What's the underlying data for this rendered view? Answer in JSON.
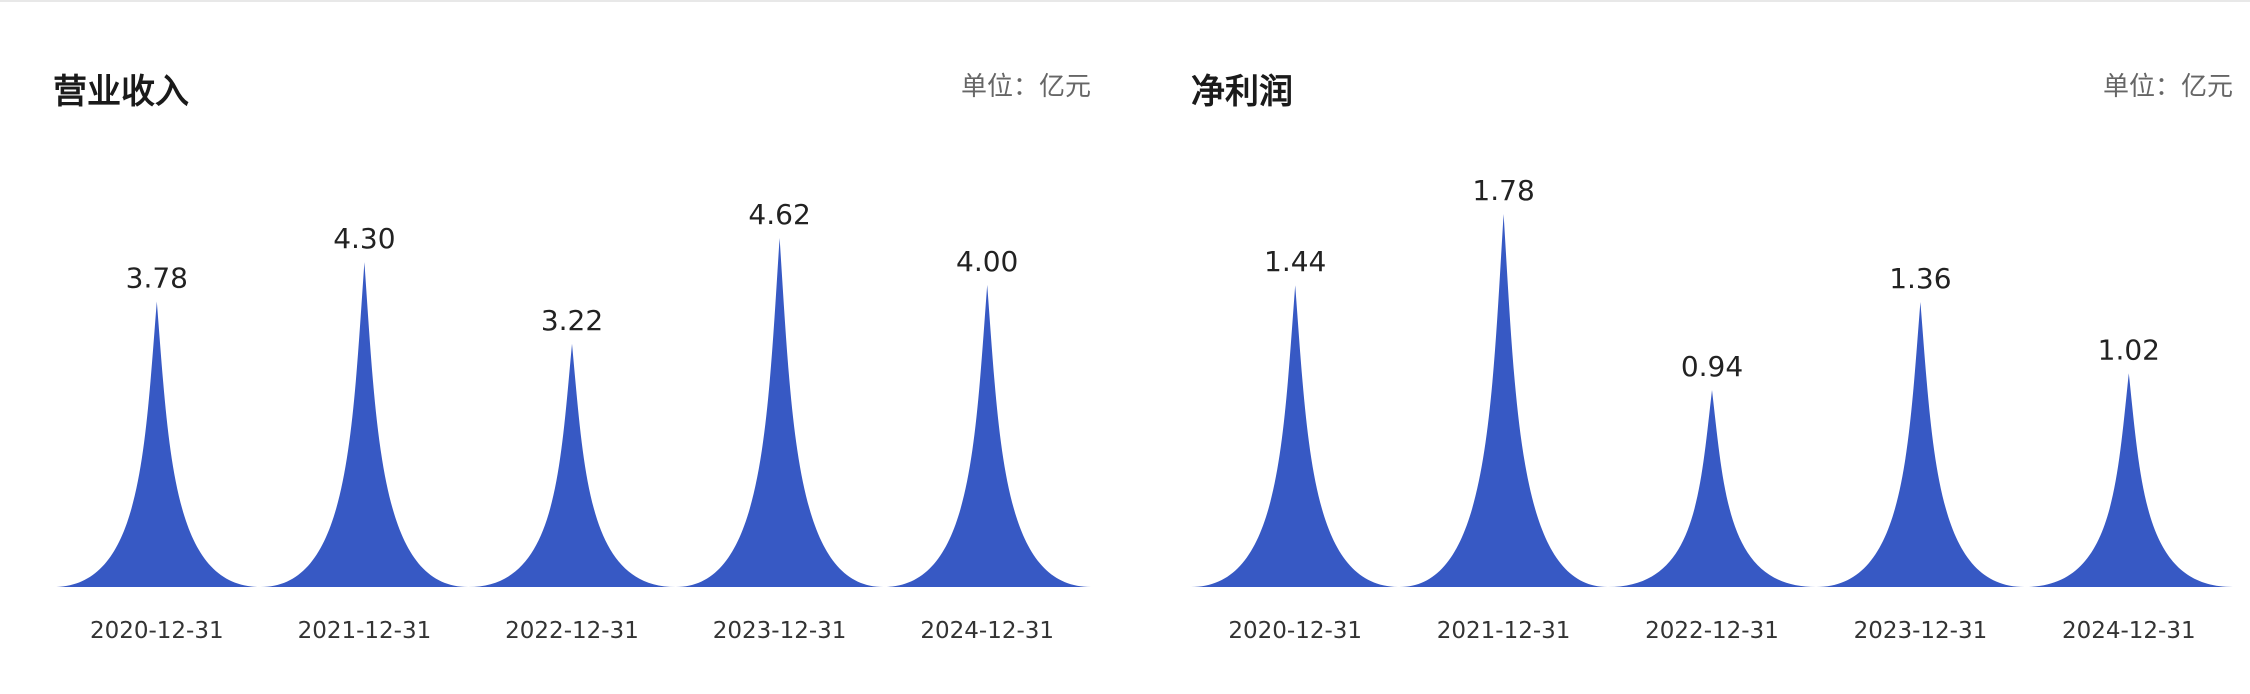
{
  "chart_data": [
    {
      "type": "bar",
      "title": "营业收入",
      "unit_label": "单位：亿元",
      "categories": [
        "2020-12-31",
        "2021-12-31",
        "2022-12-31",
        "2023-12-31",
        "2024-12-31"
      ],
      "values": [
        3.78,
        4.3,
        3.22,
        4.62,
        4.0
      ],
      "value_labels": [
        "3.78",
        "4.30",
        "3.22",
        "4.62",
        "4.00"
      ],
      "bar_shape": "peak",
      "color": "#3759C4",
      "grid": false
    },
    {
      "type": "bar",
      "title": "净利润",
      "unit_label": "单位：亿元",
      "categories": [
        "2020-12-31",
        "2021-12-31",
        "2022-12-31",
        "2023-12-31",
        "2024-12-31"
      ],
      "values": [
        1.44,
        1.78,
        0.94,
        1.36,
        1.02
      ],
      "value_labels": [
        "1.44",
        "1.78",
        "0.94",
        "1.36",
        "1.02"
      ],
      "bar_shape": "peak",
      "color": "#3759C4",
      "grid": false
    }
  ]
}
